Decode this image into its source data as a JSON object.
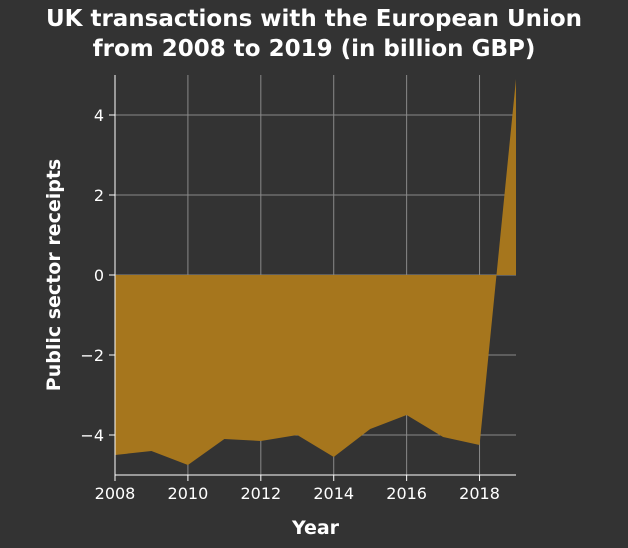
{
  "chart_data": {
    "type": "area",
    "title_line1": "UK transactions with the European Union",
    "title_line2": "from 2008 to 2019 (in billion GBP)",
    "xlabel": "Year",
    "ylabel": "Public sector receipts",
    "xlim": [
      2008,
      2019
    ],
    "ylim": [
      -5,
      5
    ],
    "x_ticks": [
      2008,
      2010,
      2012,
      2014,
      2016,
      2018
    ],
    "x_tick_labels": [
      "2008",
      "2010",
      "2012",
      "2014",
      "2016",
      "2018"
    ],
    "y_ticks": [
      -4,
      -2,
      0,
      2,
      4
    ],
    "y_tick_labels": [
      "−4",
      "−2",
      "0",
      "2",
      "4"
    ],
    "grid": true,
    "series": [
      {
        "x": [
          2008,
          2009,
          2010,
          2011,
          2012,
          2013,
          2014,
          2015,
          2016,
          2017,
          2018,
          2019
        ],
        "values": [
          -4.5,
          -4.4,
          -4.75,
          -4.1,
          -4.15,
          -4.0,
          -4.55,
          -3.85,
          -3.5,
          -4.05,
          -4.25,
          4.9
        ]
      }
    ],
    "colors": {
      "background": "#333333",
      "area_fill": "#a6761d",
      "grid": "#8a8a8a",
      "axis": "#ffffff"
    }
  }
}
